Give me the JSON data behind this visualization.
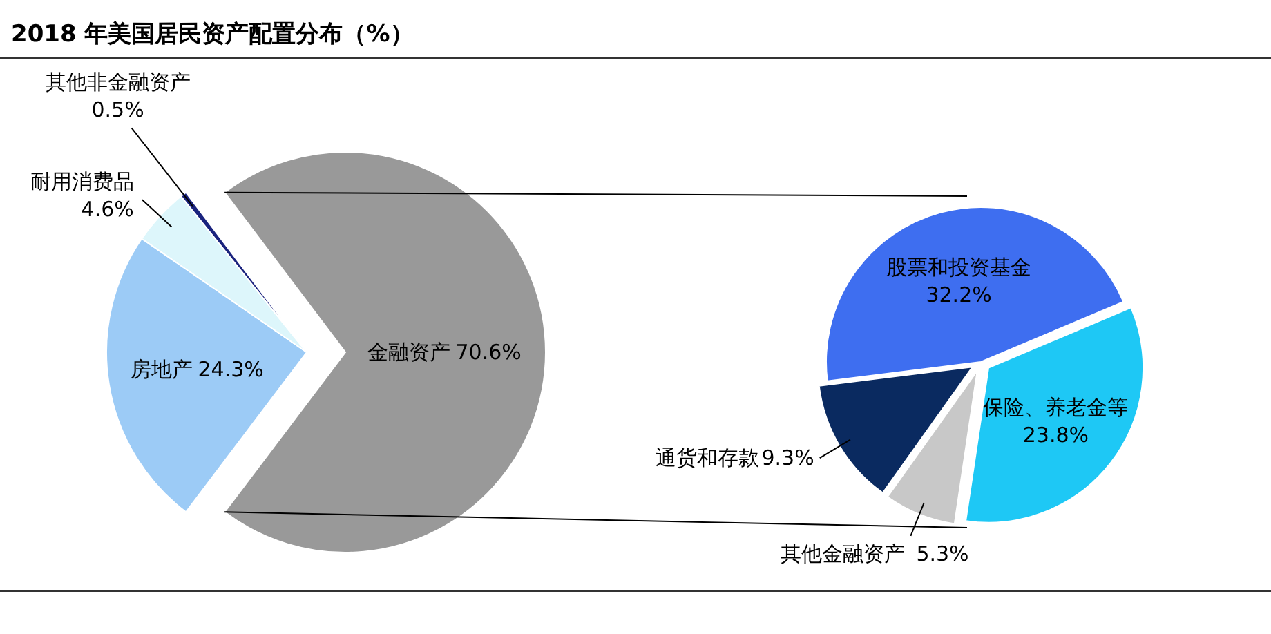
{
  "chart_data": [
    {
      "type": "pie",
      "title": "2018 年美国居民资产配置分布（%）",
      "categories": [
        "金融资产",
        "房地产",
        "耐用消费品",
        "其他非金融资产"
      ],
      "values": [
        70.6,
        24.3,
        4.6,
        0.5
      ],
      "colors": [
        "#999999",
        "#9ccbf6",
        "#ddf6fb",
        "#1a237e"
      ],
      "value_labels": [
        "70.6%",
        "24.3%",
        "4.6%",
        "0.5%"
      ]
    },
    {
      "type": "pie",
      "categories": [
        "股票和投资基金",
        "保险、养老金等",
        "其他金融资产",
        "通货和存款"
      ],
      "values": [
        32.2,
        23.8,
        5.3,
        9.3
      ],
      "colors": [
        "#3e6ef0",
        "#1ec8f5",
        "#c8c8c8",
        "#0a2a60"
      ],
      "value_labels": [
        "32.2%",
        "23.8%",
        "5.3%",
        "9.3%"
      ]
    }
  ]
}
